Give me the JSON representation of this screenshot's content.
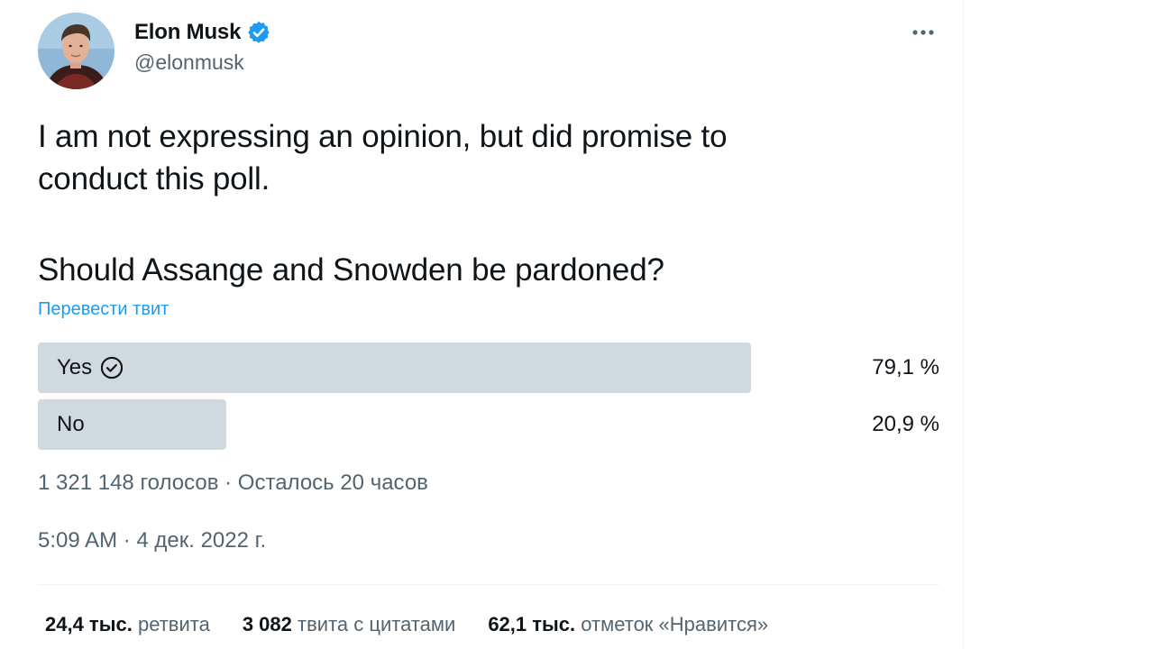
{
  "author": {
    "name": "Elon Musk",
    "handle": "@elonmusk",
    "verified": true
  },
  "tweet": {
    "text": "I am not expressing an opinion, but did promise to\nconduct this poll.",
    "question": "Should Assange and Snowden be pardoned?",
    "translate_link": "Перевести твит"
  },
  "poll": {
    "options": [
      {
        "label": "Yes",
        "percent_text": "79,1 %",
        "percent": 79.1,
        "selected": true
      },
      {
        "label": "No",
        "percent_text": "20,9 %",
        "percent": 20.9,
        "selected": false
      }
    ],
    "meta": "1 321 148 голосов · Осталось 20 часов"
  },
  "timestamp": "5:09 AM · 4 дек. 2022 г.",
  "stats": [
    {
      "value": "24,4 тыс.",
      "label": "ретвита"
    },
    {
      "value": "3 082",
      "label": "твита с цитатами"
    },
    {
      "value": "62,1 тыс.",
      "label": "отметок «Нравится»"
    }
  ],
  "colors": {
    "accent": "#1d9bf0",
    "poll_bar": "#cfd9de",
    "secondary_text": "#536471"
  },
  "icons": {
    "verified": "verified-badge-icon",
    "more": "more-dots-icon",
    "selected": "check-circle-icon"
  }
}
